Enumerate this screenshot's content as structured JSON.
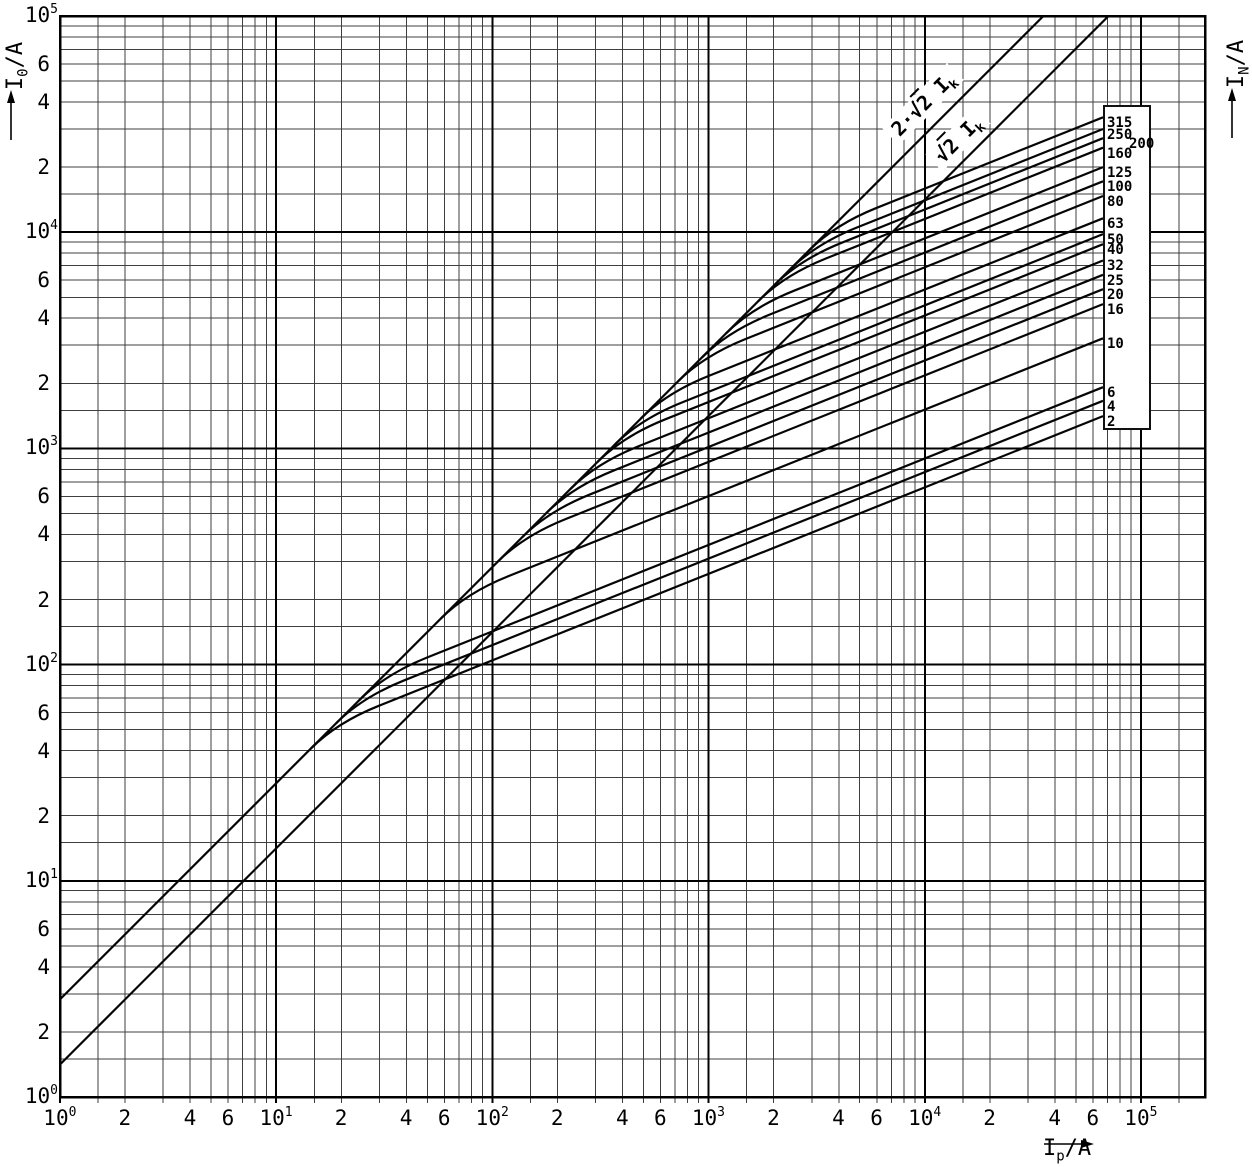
{
  "tick_base": "10",
  "x_ticks": {
    "decade_exponents": [
      "0",
      "1",
      "2",
      "3",
      "4",
      "5"
    ],
    "minor_labels": [
      "2",
      "4",
      "6"
    ]
  },
  "y_ticks": {
    "decade_exponents": [
      "5",
      "4",
      "3",
      "2",
      "1",
      "0"
    ],
    "minor_labels": [
      "6",
      "4",
      "2"
    ]
  },
  "axis_titles": {
    "left": {
      "sym": "I",
      "sub": "0",
      "rest": "/A"
    },
    "bottom": {
      "sym": "I",
      "sub": "p",
      "rest": "/A"
    },
    "right": {
      "sym": "I",
      "sub": "N",
      "rest": "/A"
    }
  },
  "asymptote_labels": {
    "upper": {
      "prefix": "2·",
      "sqrt_sym": "√",
      "radicand": "2",
      "var": "I",
      "sub": "k"
    },
    "lower": {
      "prefix": "",
      "sqrt_sym": "√",
      "radicand": "2",
      "var": "I",
      "sub": "k"
    }
  },
  "legend": {
    "ratings": [
      "315",
      "250",
      "200",
      "160",
      "125",
      "100",
      "80",
      "63",
      "50",
      "40",
      "32",
      "25",
      "20",
      "16",
      "10",
      "6",
      "4",
      "2"
    ]
  },
  "chart_data": {
    "type": "line",
    "scale": "log-log",
    "xlabel": "Ip/A",
    "ylabel": "I0/A",
    "ylabel_right": "IN/A",
    "xlim": [
      1,
      200000
    ],
    "ylim": [
      1,
      100000
    ],
    "grid": "log-log graph paper, minor lines at 1.5,2,3,4,5,6,7,8,9 per decade, labels at 2,4,6",
    "legend_position": "right-inside-box",
    "asymptotes": [
      {
        "label": "2·√2 Ik",
        "factor": 2.828,
        "equation": "I0 = 2.828 × Ip",
        "points": [
          {
            "Ip": 1,
            "I0": 2.83
          },
          {
            "Ip": 35400,
            "I0": 100000
          }
        ]
      },
      {
        "label": "√2 Ik",
        "factor": 1.414,
        "equation": "I0 = 1.414 × Ip",
        "points": [
          {
            "Ip": 1,
            "I0": 1.41
          },
          {
            "Ip": 70700,
            "I0": 100000
          }
        ]
      }
    ],
    "series_note": "Fuse cut-off current curves: each follows the 2·√2·Ik line up to its branch point, then rises as a straight log-log line of slope 0.4 to the end point at Ip = 66700 A",
    "series": [
      {
        "rating": "315",
        "label_offset": false,
        "branch_point": {
          "Ip": 3840,
          "I0": 10840
        },
        "end_point": {
          "Ip": 66700,
          "I0": 34000
        },
        "loglog_slope": 0.4
      },
      {
        "rating": "250",
        "label_offset": false,
        "branch_point": {
          "Ip": 3110,
          "I0": 8810
        },
        "end_point": {
          "Ip": 66700,
          "I0": 30000
        },
        "loglog_slope": 0.4
      },
      {
        "rating": "200",
        "label_offset": true,
        "branch_point": {
          "Ip": 2640,
          "I0": 7460
        },
        "end_point": {
          "Ip": 66700,
          "I0": 27200
        },
        "loglog_slope": 0.4
      },
      {
        "rating": "160",
        "label_offset": false,
        "branch_point": {
          "Ip": 2240,
          "I0": 6330
        },
        "end_point": {
          "Ip": 66700,
          "I0": 24600
        },
        "loglog_slope": 0.4
      },
      {
        "rating": "125",
        "label_offset": false,
        "branch_point": {
          "Ip": 1580,
          "I0": 4480
        },
        "end_point": {
          "Ip": 66700,
          "I0": 20000
        },
        "loglog_slope": 0.4
      },
      {
        "rating": "100",
        "label_offset": false,
        "branch_point": {
          "Ip": 1230,
          "I0": 3480
        },
        "end_point": {
          "Ip": 66700,
          "I0": 17200
        },
        "loglog_slope": 0.4
      },
      {
        "rating": "80",
        "label_offset": false,
        "branch_point": {
          "Ip": 950,
          "I0": 2680
        },
        "end_point": {
          "Ip": 66700,
          "I0": 14700
        },
        "loglog_slope": 0.4
      },
      {
        "rating": "63",
        "label_offset": false,
        "branch_point": {
          "Ip": 640,
          "I0": 1810
        },
        "end_point": {
          "Ip": 66700,
          "I0": 11600
        },
        "loglog_slope": 0.4
      },
      {
        "rating": "50",
        "label_offset": false,
        "branch_point": {
          "Ip": 483,
          "I0": 1360
        },
        "end_point": {
          "Ip": 66700,
          "I0": 9800
        },
        "loglog_slope": 0.4
      },
      {
        "rating": "40",
        "label_offset": false,
        "branch_point": {
          "Ip": 403,
          "I0": 1140
        },
        "end_point": {
          "Ip": 66700,
          "I0": 8800
        },
        "loglog_slope": 0.4
      },
      {
        "rating": "32",
        "label_offset": false,
        "branch_point": {
          "Ip": 303,
          "I0": 856
        },
        "end_point": {
          "Ip": 66700,
          "I0": 7400
        },
        "loglog_slope": 0.4
      },
      {
        "rating": "25",
        "label_offset": false,
        "branch_point": {
          "Ip": 234,
          "I0": 662
        },
        "end_point": {
          "Ip": 66700,
          "I0": 6350
        },
        "loglog_slope": 0.4
      },
      {
        "rating": "20",
        "label_offset": false,
        "branch_point": {
          "Ip": 182,
          "I0": 513
        },
        "end_point": {
          "Ip": 66700,
          "I0": 5450
        },
        "loglog_slope": 0.4
      },
      {
        "rating": "16",
        "label_offset": false,
        "branch_point": {
          "Ip": 139,
          "I0": 394
        },
        "end_point": {
          "Ip": 66700,
          "I0": 4650
        },
        "loglog_slope": 0.4
      },
      {
        "rating": "10",
        "label_offset": false,
        "branch_point": {
          "Ip": 76,
          "I0": 215
        },
        "end_point": {
          "Ip": 66700,
          "I0": 3230
        },
        "loglog_slope": 0.4
      },
      {
        "rating": "6",
        "label_offset": false,
        "branch_point": {
          "Ip": 32,
          "I0": 90
        },
        "end_point": {
          "Ip": 66700,
          "I0": 1920
        },
        "loglog_slope": 0.4
      },
      {
        "rating": "4",
        "label_offset": false,
        "branch_point": {
          "Ip": 25,
          "I0": 71
        },
        "end_point": {
          "Ip": 66700,
          "I0": 1660
        },
        "loglog_slope": 0.4
      },
      {
        "rating": "2",
        "label_offset": false,
        "branch_point": {
          "Ip": 19,
          "I0": 54
        },
        "end_point": {
          "Ip": 66700,
          "I0": 1410
        },
        "loglog_slope": 0.4
      }
    ]
  }
}
